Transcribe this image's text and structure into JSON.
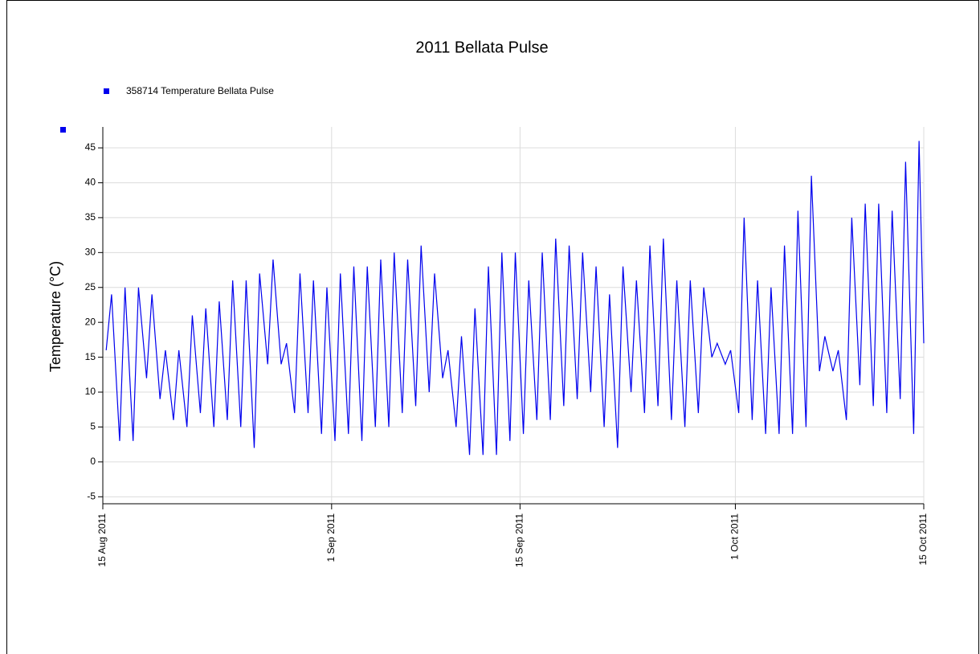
{
  "chart_data": {
    "type": "line",
    "title": "2011 Bellata Pulse",
    "y_label": "Temperature (°C)",
    "x": [
      0.25,
      0.65,
      1.25,
      1.65,
      2.25,
      2.65,
      3.25,
      3.65,
      4.25,
      4.65,
      5.25,
      5.65,
      6.25,
      6.65,
      7.25,
      7.65,
      8.25,
      8.65,
      9.25,
      9.65,
      10.25,
      10.65,
      11.25,
      11.65,
      12.25,
      12.65,
      13.25,
      13.65,
      14.25,
      14.65,
      15.25,
      15.65,
      16.25,
      16.65,
      17.25,
      17.65,
      18.25,
      18.65,
      19.25,
      19.65,
      20.25,
      20.65,
      21.25,
      21.65,
      22.25,
      22.65,
      23.25,
      23.65,
      24.25,
      24.65,
      25.25,
      25.65,
      26.25,
      26.65,
      27.25,
      27.65,
      28.25,
      28.65,
      29.25,
      29.65,
      30.25,
      30.65,
      31.25,
      31.65,
      32.25,
      32.65,
      33.25,
      33.65,
      34.25,
      34.65,
      35.25,
      35.65,
      36.25,
      36.65,
      37.25,
      37.65,
      38.25,
      38.65,
      39.25,
      39.65,
      40.25,
      40.65,
      41.25,
      41.65,
      42.25,
      42.65,
      43.25,
      43.65,
      44.25,
      44.65,
      45.25,
      45.65,
      46.25,
      46.65,
      47.25,
      47.65,
      48.25,
      48.65,
      49.25,
      49.65,
      50.25,
      50.65,
      51.25,
      51.65,
      52.25,
      52.65,
      53.25,
      53.65,
      54.25,
      54.65,
      55.25,
      55.65,
      56.25,
      56.65,
      57.25,
      57.65,
      58.25,
      58.65,
      59.25,
      59.65,
      60.25,
      60.65,
      61
    ],
    "series": [
      {
        "name": "358714  Temperature Bellata Pulse",
        "color": "#0000ee",
        "values": [
          16,
          24,
          3,
          25,
          3,
          25,
          12,
          24,
          9,
          16,
          6,
          16,
          5,
          21,
          7,
          22,
          5,
          23,
          6,
          26,
          5,
          26,
          2,
          27,
          14,
          29,
          14,
          17,
          7,
          27,
          7,
          26,
          4,
          25,
          3,
          27,
          4,
          28,
          3,
          28,
          5,
          29,
          5,
          30,
          7,
          29,
          8,
          31,
          10,
          27,
          12,
          16,
          5,
          18,
          1,
          22,
          1,
          28,
          1,
          30,
          3,
          30,
          4,
          26,
          6,
          30,
          6,
          32,
          8,
          31,
          9,
          30,
          10,
          28,
          5,
          24,
          2,
          28,
          10,
          26,
          7,
          31,
          8,
          32,
          6,
          26,
          5,
          26,
          7,
          25,
          15,
          17,
          14,
          16,
          7,
          35,
          6,
          26,
          4,
          25,
          4,
          31,
          4,
          36,
          5,
          41,
          13,
          18,
          13,
          16,
          6,
          35,
          11,
          37,
          8,
          37,
          7,
          36,
          9,
          43,
          4,
          46,
          17
        ]
      }
    ],
    "xlim": [
      0,
      61
    ],
    "xticks": [
      {
        "value": 0,
        "label": "15 Aug 2011"
      },
      {
        "value": 17,
        "label": "1 Sep 2011"
      },
      {
        "value": 31,
        "label": "15 Sep 2011"
      },
      {
        "value": 47,
        "label": "1 Oct 2011"
      },
      {
        "value": 61,
        "label": "15 Oct 2011"
      }
    ],
    "ylim": [
      -6,
      48
    ],
    "yticks": [
      -5,
      0,
      5,
      10,
      15,
      20,
      25,
      30,
      35,
      40,
      45
    ],
    "grid": true
  }
}
